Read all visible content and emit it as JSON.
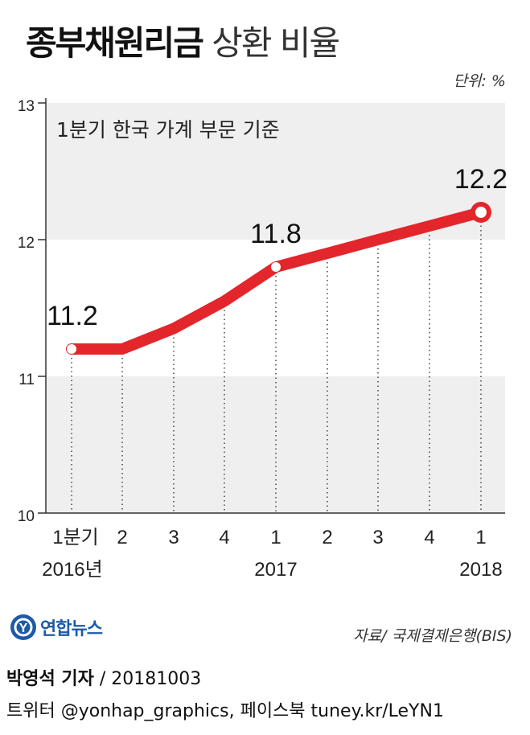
{
  "header": {
    "title_bold": "종부채원리금",
    "title_rest": "상환 비율",
    "unit": "단위: %"
  },
  "chart_data": {
    "type": "line",
    "subtitle": "1분기 한국 가계 부문 기준",
    "x_ticks": [
      "1분기",
      "2",
      "3",
      "4",
      "1",
      "2",
      "3",
      "4",
      "1"
    ],
    "year_labels": [
      "2016년",
      "2017",
      "2018"
    ],
    "y_ticks": [
      "13",
      "12",
      "11",
      "10"
    ],
    "ylim": [
      10,
      13
    ],
    "series": [
      {
        "values": [
          11.2,
          11.2,
          11.35,
          11.55,
          11.8,
          11.9,
          12.0,
          12.1,
          12.2
        ]
      }
    ],
    "point_labels": [
      {
        "index": 0,
        "text": "11.2"
      },
      {
        "index": 4,
        "text": "11.8"
      },
      {
        "index": 8,
        "text": "12.2"
      }
    ],
    "line_color": "#e3262b",
    "band_color": "#efefef",
    "grid": "dotted vertical"
  },
  "source": "자료/ 국제결제은행(BIS)",
  "brand": {
    "name": "연합뉴스",
    "logo_letter": "Y"
  },
  "footer": {
    "reporter": "박영석 기자",
    "date": "/ 20181003",
    "social": "트위터 @yonhap_graphics, 페이스북 tuney.kr/LeYN1"
  }
}
